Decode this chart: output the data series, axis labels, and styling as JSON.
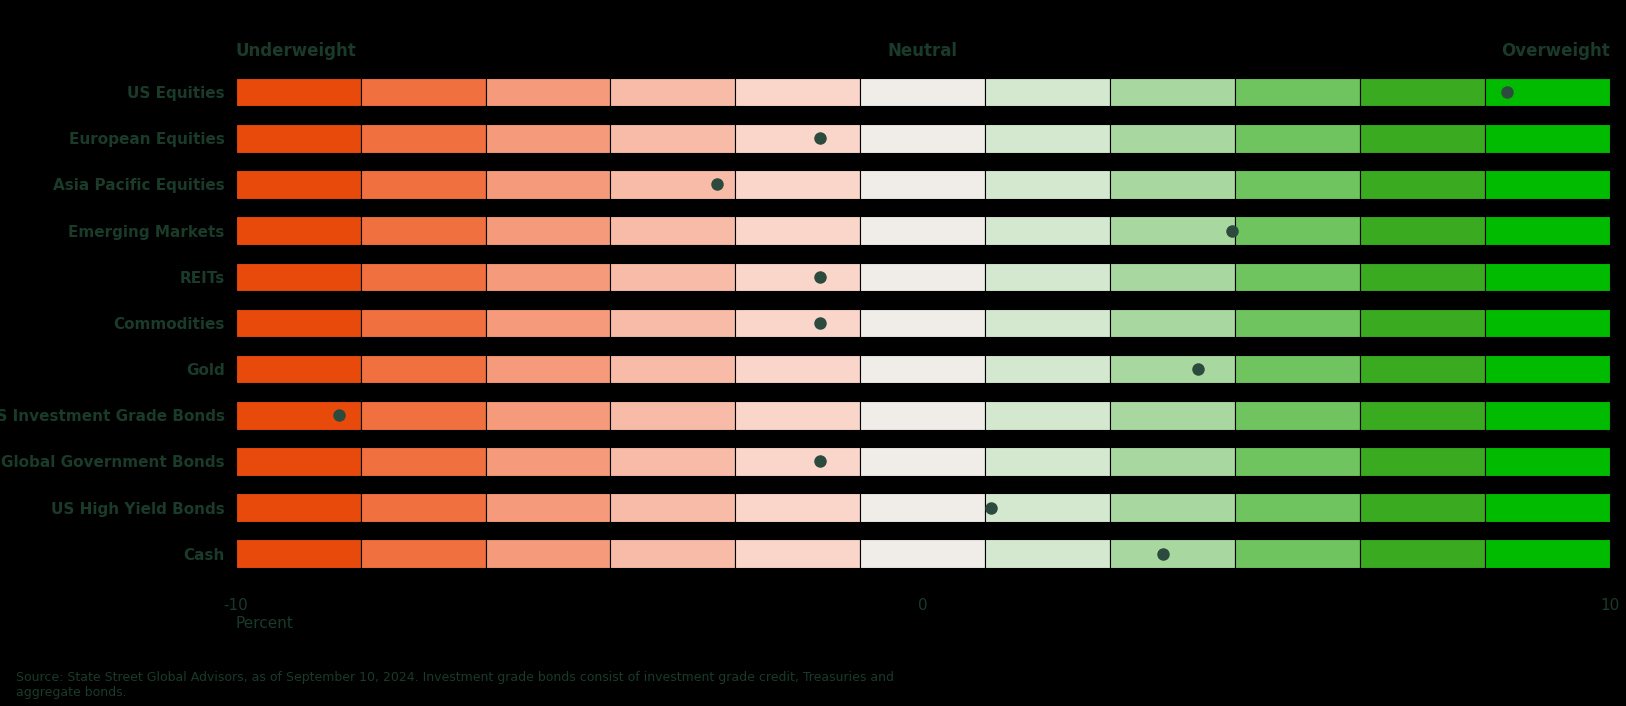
{
  "categories": [
    "US Equities",
    "European Equities",
    "Asia Pacific Equities",
    "Emerging Markets",
    "REITs",
    "Commodities",
    "Gold",
    "US Investment Grade Bonds",
    "Global Government Bonds",
    "US High Yield Bonds",
    "Cash"
  ],
  "dot_positions": [
    8.5,
    -1.5,
    -3.0,
    4.5,
    -1.5,
    -1.5,
    4.0,
    -8.5,
    -1.5,
    1.0,
    3.5
  ],
  "xmin": -10,
  "xmax": 10,
  "title_underweight": "Underweight",
  "title_neutral": "Neutral",
  "title_overweight": "Overweight",
  "xlabel": "Percent",
  "xticks": [
    -10,
    0,
    10
  ],
  "source_text": "Source: State Street Global Advisors, as of September 10, 2024. Investment grade bonds consist of investment grade credit, Treasuries and\naggregate bonds.",
  "background_color": "#000000",
  "bar_height": 0.62,
  "dot_color": "#2d4a3e",
  "label_color": "#1a3a2a",
  "header_color": "#1a3a2a",
  "axis_color": "#1a3a2a",
  "segment_colors": [
    "#E84A0C",
    "#F07040",
    "#F59A7A",
    "#F8BBA8",
    "#FAD5CA",
    "#F0EDE8",
    "#D4E8D0",
    "#A8D8A0",
    "#70C460",
    "#3AAA20",
    "#00BB00"
  ],
  "n_segments": 11
}
